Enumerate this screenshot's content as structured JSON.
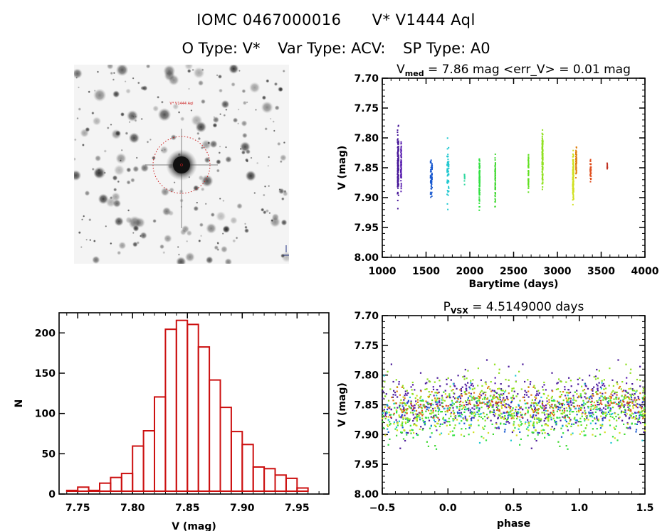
{
  "header": {
    "object_id": "IOMC 0467000016",
    "star_name": "V* V1444 Aql",
    "otype": "O Type: V*",
    "vartype": "Var Type: ACV:",
    "sptype": "SP Type: A0"
  },
  "sky_image": {
    "target_label": "V* V1444 Aql",
    "colors": {
      "circle": "#cc2020"
    }
  },
  "chart_data": [
    {
      "id": "lightcurve",
      "type": "scatter",
      "title_main": "V",
      "title_sub": "med",
      "title_rest": " = 7.86 mag  <err_V> = 0.01 mag",
      "xlabel": "Barytime (days)",
      "ylabel": "V (mag)",
      "xlim": [
        1000,
        4000
      ],
      "ylim": [
        8.0,
        7.7
      ],
      "xticks": [
        1000,
        1500,
        2000,
        2500,
        3000,
        3500,
        4000
      ],
      "yticks": [
        "7.70",
        "7.75",
        "7.80",
        "7.85",
        "7.90",
        "7.95",
        "8.00"
      ],
      "clusters": [
        {
          "t": 1180,
          "spread": 12,
          "vmin": 7.745,
          "vmax": 7.95,
          "n": 160,
          "color": "#4a1a9a"
        },
        {
          "t": 1215,
          "spread": 6,
          "vmin": 7.775,
          "vmax": 7.92,
          "n": 80,
          "color": "#5a20b0"
        },
        {
          "t": 1560,
          "spread": 20,
          "vmin": 7.805,
          "vmax": 7.92,
          "n": 70,
          "color": "#1a5ad0"
        },
        {
          "t": 1750,
          "spread": 20,
          "vmin": 7.755,
          "vmax": 7.955,
          "n": 55,
          "color": "#20c8d0"
        },
        {
          "t": 1940,
          "spread": 5,
          "vmin": 7.845,
          "vmax": 7.885,
          "n": 10,
          "color": "#30d8a0"
        },
        {
          "t": 2110,
          "spread": 6,
          "vmin": 7.795,
          "vmax": 7.955,
          "n": 90,
          "color": "#30e040"
        },
        {
          "t": 2290,
          "spread": 6,
          "vmin": 7.8,
          "vmax": 7.94,
          "n": 55,
          "color": "#40d830"
        },
        {
          "t": 2670,
          "spread": 4,
          "vmin": 7.8,
          "vmax": 7.915,
          "n": 55,
          "color": "#60e020"
        },
        {
          "t": 2830,
          "spread": 10,
          "vmin": 7.755,
          "vmax": 7.92,
          "n": 120,
          "color": "#90e020"
        },
        {
          "t": 3180,
          "spread": 10,
          "vmin": 7.78,
          "vmax": 7.955,
          "n": 110,
          "color": "#d0e020"
        },
        {
          "t": 3215,
          "spread": 8,
          "vmin": 7.795,
          "vmax": 7.885,
          "n": 50,
          "color": "#e08010"
        },
        {
          "t": 3380,
          "spread": 10,
          "vmin": 7.815,
          "vmax": 7.895,
          "n": 45,
          "color": "#e05020"
        },
        {
          "t": 3570,
          "spread": 4,
          "vmin": 7.835,
          "vmax": 7.865,
          "n": 10,
          "color": "#c03020"
        }
      ]
    },
    {
      "id": "histogram",
      "type": "bar",
      "xlabel": "V (mag)",
      "ylabel": "N",
      "xlim": [
        7.733,
        7.979
      ],
      "ylim": [
        0,
        225
      ],
      "xticks": [
        "7.75",
        "7.80",
        "7.85",
        "7.90",
        "7.95"
      ],
      "yticks": [
        "0",
        "50",
        "100",
        "150",
        "200"
      ],
      "bin_start": 7.74,
      "bin_width": 0.01,
      "values": [
        1,
        5,
        1,
        10,
        17,
        22,
        56,
        75,
        117,
        201,
        212,
        207,
        179,
        138,
        104,
        74,
        58,
        30,
        28,
        20,
        16,
        4
      ],
      "color": "#cc1010"
    },
    {
      "id": "phased",
      "type": "scatter",
      "title_main": "P",
      "title_sub": "VSX",
      "title_rest": " = 4.5149000 days",
      "xlabel": "phase",
      "ylabel": "V (mag)",
      "xlim": [
        -0.5,
        1.5
      ],
      "ylim": [
        8.0,
        7.7
      ],
      "xticks": [
        "-0.5",
        "0.0",
        "0.5",
        "1.0",
        "1.5"
      ],
      "yticks": [
        "7.70",
        "7.75",
        "7.80",
        "7.85",
        "7.90",
        "7.95",
        "8.00"
      ],
      "period_days": 4.5149,
      "palette": [
        "#3a1080",
        "#5a20b0",
        "#1a5ad0",
        "#20c8d0",
        "#30d8a0",
        "#30e040",
        "#60e020",
        "#90e020",
        "#d0e020",
        "#e08010",
        "#e05020"
      ]
    }
  ]
}
